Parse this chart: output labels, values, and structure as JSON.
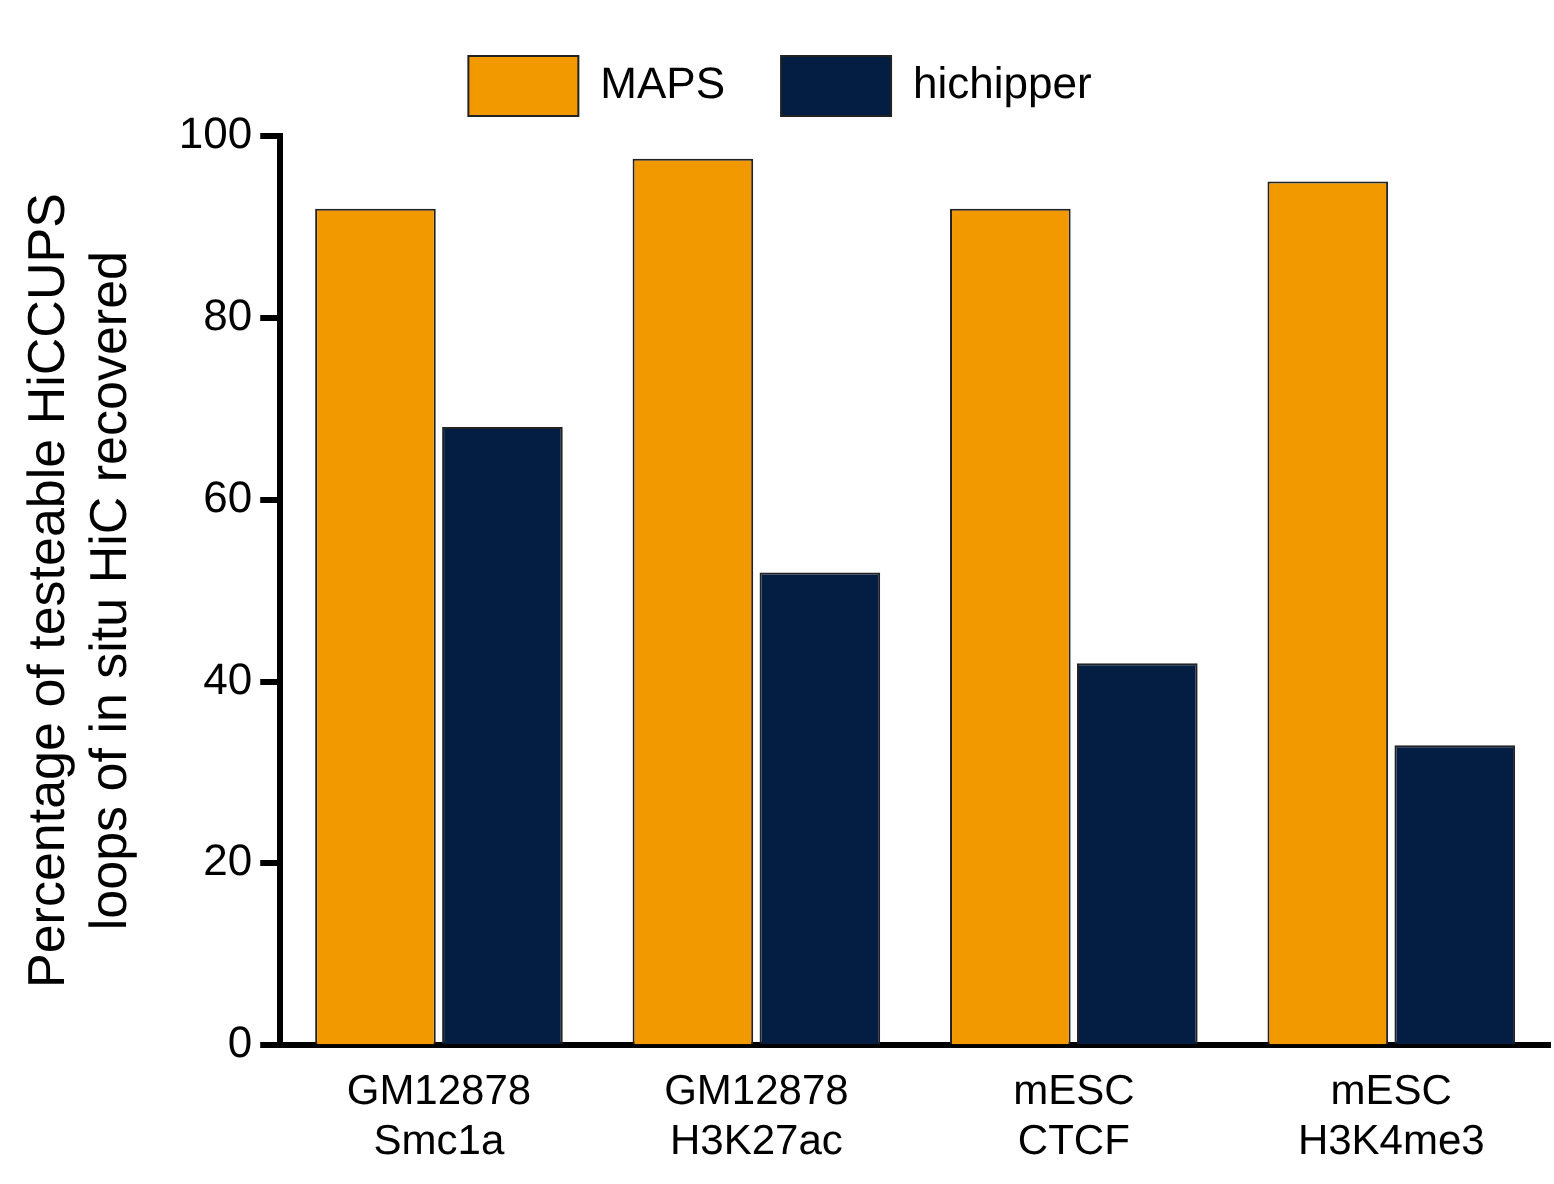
{
  "chart_data": {
    "type": "bar",
    "ylabel": "Percentage of testeable HiCCUPS\nloops of in situ HiC recovered",
    "categories": [
      "GM12878\nSmc1a",
      "GM12878\nH3K27ac",
      "mESC\nCTCF",
      "mESC\nH3K4me3"
    ],
    "series": [
      {
        "name": "MAPS",
        "color": "#f29900",
        "values": [
          92,
          97.5,
          92,
          95
        ]
      },
      {
        "name": "hichipper",
        "color": "#031e42",
        "values": [
          68,
          52,
          42,
          33
        ]
      }
    ],
    "ylim": [
      0,
      100
    ],
    "yticks": [
      0,
      20,
      40,
      60,
      80,
      100
    ],
    "grid": false,
    "legend": "top"
  }
}
